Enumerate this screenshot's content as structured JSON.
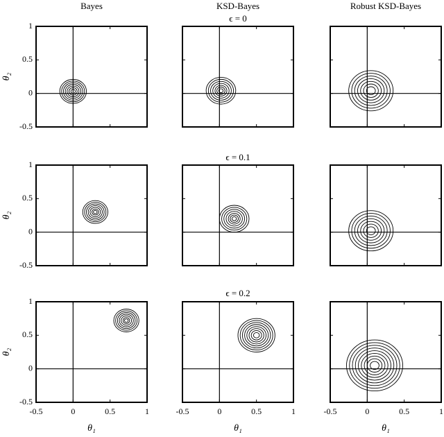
{
  "chart_data": {
    "type": "contour",
    "column_titles": [
      "Bayes",
      "KSD-Bayes",
      "Robust KSD-Bayes"
    ],
    "row_titles": [
      "ϵ = 0",
      "ϵ = 0.1",
      "ϵ = 0.2"
    ],
    "xlabel": "θ₁",
    "ylabel": "θ₂",
    "xlim": [
      -0.5,
      1
    ],
    "ylim": [
      -0.5,
      1
    ],
    "xticks": [
      -0.5,
      0,
      0.5,
      1
    ],
    "yticks": [
      -0.5,
      0,
      0.5,
      1
    ],
    "reference_x": 0,
    "reference_y": 0,
    "color": "#000000",
    "panels": [
      {
        "center": [
          0,
          0.03
        ],
        "radii": [
          0.18,
          0.155,
          0.13,
          0.105,
          0.08,
          0.055,
          0.03
        ]
      },
      {
        "center": [
          0.02,
          0.04
        ],
        "radii": [
          0.2,
          0.17,
          0.14,
          0.11,
          0.08,
          0.055,
          0.03
        ]
      },
      {
        "center": [
          0.05,
          0.04
        ],
        "radii": [
          0.3,
          0.26,
          0.22,
          0.18,
          0.14,
          0.1,
          0.06
        ]
      },
      {
        "center": [
          0.3,
          0.3
        ],
        "radii": [
          0.17,
          0.145,
          0.12,
          0.095,
          0.07,
          0.045,
          0.025
        ]
      },
      {
        "center": [
          0.2,
          0.2
        ],
        "radii": [
          0.2,
          0.17,
          0.14,
          0.11,
          0.08,
          0.055,
          0.03
        ]
      },
      {
        "center": [
          0.05,
          0.02
        ],
        "radii": [
          0.3,
          0.26,
          0.22,
          0.18,
          0.14,
          0.1,
          0.06
        ]
      },
      {
        "center": [
          0.72,
          0.72
        ],
        "radii": [
          0.17,
          0.145,
          0.12,
          0.095,
          0.07,
          0.045,
          0.025
        ]
      },
      {
        "center": [
          0.5,
          0.5
        ],
        "radii": [
          0.25,
          0.22,
          0.19,
          0.16,
          0.13,
          0.1,
          0.07,
          0.04
        ]
      },
      {
        "center": [
          0.1,
          0.05
        ],
        "radii": [
          0.38,
          0.34,
          0.3,
          0.26,
          0.22,
          0.18,
          0.14,
          0.1,
          0.06
        ]
      }
    ]
  }
}
